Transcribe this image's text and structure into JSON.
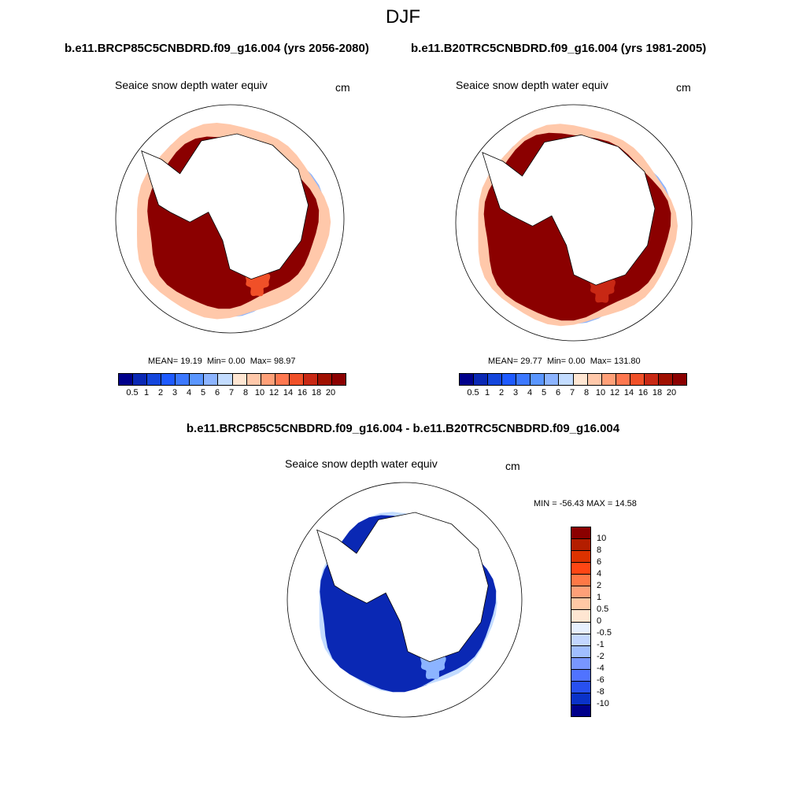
{
  "season": "DJF",
  "panels": [
    {
      "case_title": "b.e11.BRCP85C5CNBDRD.f09_g16.004 (yrs 2056-2080)",
      "variable": "Seaice snow depth water equiv",
      "unit": "cm",
      "mean_label": "MEAN=",
      "mean": "19.19",
      "min_label": "Min=",
      "min": "0.00",
      "max_label": "Max=",
      "max": "98.97"
    },
    {
      "case_title": "b.e11.B20TRC5CNBDRD.f09_g16.004 (yrs 1981-2005)",
      "variable": "Seaice snow depth water equiv",
      "unit": "cm",
      "mean_label": "MEAN=",
      "mean": "29.77",
      "min_label": "Min=",
      "min": "0.00",
      "max_label": "Max=",
      "max": "131.80"
    }
  ],
  "diff_panel": {
    "case_title": "b.e11.BRCP85C5CNBDRD.f09_g16.004 - b.e11.B20TRC5CNBDRD.f09_g16.004",
    "variable": "Seaice snow depth water equiv",
    "unit": "cm",
    "min_label": "MIN =",
    "min": "-56.43",
    "max_label": "MAX =",
    "max": "14.58"
  },
  "colorbar_abs": {
    "levels": [
      "0.5",
      "1",
      "2",
      "3",
      "4",
      "5",
      "6",
      "7",
      "8",
      "10",
      "12",
      "14",
      "16",
      "18",
      "20"
    ],
    "colors": [
      "#00008b",
      "#0a28b4",
      "#1446dc",
      "#1e5aff",
      "#3c78ff",
      "#5a96ff",
      "#8cb4ff",
      "#c3dcff",
      "#ffe6d2",
      "#ffc8aa",
      "#ffa078",
      "#ff7850",
      "#f05028",
      "#c82814",
      "#a01000",
      "#8b0000"
    ]
  },
  "colorbar_diff": {
    "levels": [
      "10",
      "8",
      "6",
      "4",
      "2",
      "1",
      "0.5",
      "0",
      "-0.5",
      "-1",
      "-2",
      "-4",
      "-6",
      "-8",
      "-10"
    ],
    "colors": [
      "#8b0000",
      "#b41e00",
      "#dc3200",
      "#ff4614",
      "#ff7846",
      "#ffa078",
      "#ffc8a5",
      "#ffe6d2",
      "#e6f0ff",
      "#c3d7ff",
      "#a0beff",
      "#7896ff",
      "#5073ff",
      "#2850f0",
      "#0a32c8",
      "#00008b"
    ]
  },
  "maps": [
    {
      "map_name": "rcp85",
      "ice_main": "#8b0000",
      "inner_patches": "#f05028",
      "edge": [
        "#ffc8aa",
        "#8cb4ff",
        "#1e5aff",
        "#0a28b4"
      ]
    },
    {
      "map_name": "historical",
      "ice_main": "#8b0000",
      "inner_patches": "#c82814",
      "edge": [
        "#ffc8aa",
        "#8cb4ff",
        "#1e5aff",
        "#0a28b4"
      ]
    },
    {
      "map_name": "difference",
      "ice_main": "#0a28b4",
      "inner_patches": "#8cb4ff",
      "edge": [
        "#c3dcff",
        "#0a28b4"
      ]
    }
  ]
}
